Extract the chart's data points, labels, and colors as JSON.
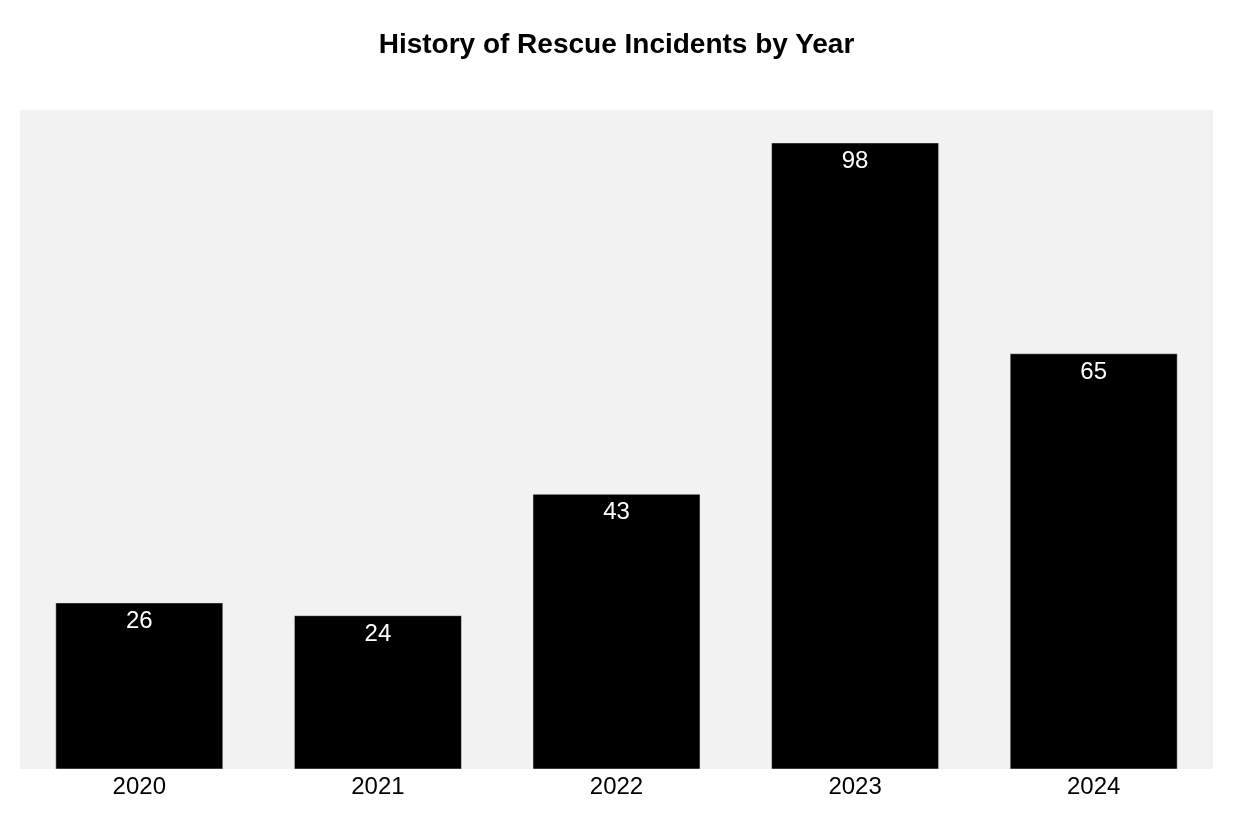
{
  "chart_data": {
    "type": "bar",
    "title": "History of Rescue Incidents by Year",
    "categories": [
      "2020",
      "2021",
      "2022",
      "2023",
      "2024"
    ],
    "values": [
      26,
      24,
      43,
      98,
      65
    ],
    "color": "#000000",
    "data_labels": true,
    "tick_labels": "x"
  }
}
